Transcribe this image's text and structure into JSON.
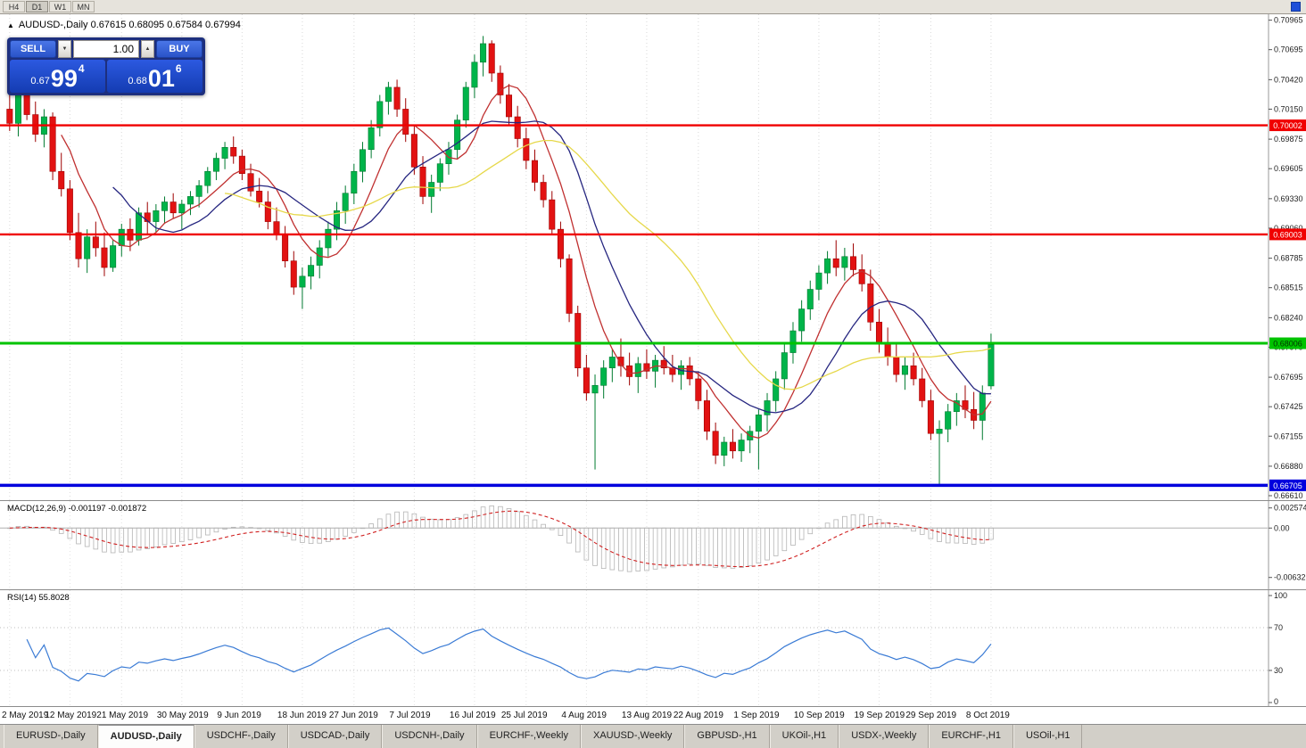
{
  "toolbar": {
    "timeframes": [
      "H4",
      "D1",
      "W1",
      "MN"
    ],
    "active_timeframe": "D1"
  },
  "window": {
    "accent_icon_color": "#1f4fd8"
  },
  "chart": {
    "collapse_icon": "▲",
    "title": "AUDUSD-,Daily  0.67615 0.68095 0.67584 0.67994"
  },
  "trade_panel": {
    "sell_label": "SELL",
    "buy_label": "BUY",
    "volume": "1.00",
    "decrease_icon": "▼",
    "increase_icon": "▲",
    "sell_price": {
      "prefix": "0.67",
      "big": "99",
      "sup": "4"
    },
    "buy_price": {
      "prefix": "0.68",
      "big": "01",
      "sup": "6"
    }
  },
  "indicators": {
    "macd": {
      "label": "MACD(12,26,9) -0.001197 -0.001872",
      "axis": [
        "0.002574",
        "0.00",
        "-0.006326"
      ],
      "fast": 12,
      "slow": 26,
      "signal": 9,
      "histogram_color": "#b4b4b4",
      "signal_color": "#d02020",
      "range": [
        -0.0075,
        0.003
      ]
    },
    "rsi": {
      "label": "RSI(14) 55.8028",
      "axis": [
        "100",
        "70",
        "30",
        "0"
      ],
      "period": 14,
      "levels": [
        70,
        30
      ],
      "line_color": "#3a7bd5"
    }
  },
  "chart_data": {
    "type": "candlestick",
    "symbol": "AUDUSD-",
    "timeframe": "Daily",
    "current_ohlc": {
      "open": 0.67615,
      "high": 0.68095,
      "low": 0.67584,
      "close": 0.67994
    },
    "y_range": [
      0.6661,
      0.7097
    ],
    "up_color": "#00b44a",
    "up_border": "#007a30",
    "down_color": "#e21212",
    "down_border": "#9e0000",
    "y_axis_labels": [
      "0.70965",
      "0.70695",
      "0.70420",
      "0.70150",
      "0.69875",
      "0.69605",
      "0.69330",
      "0.69060",
      "0.68785",
      "0.68515",
      "0.68240",
      "0.67970",
      "0.67695",
      "0.67425",
      "0.67155",
      "0.66880",
      "0.66610"
    ],
    "x_labels": [
      "2 May 2019",
      "12 May 2019",
      "21 May 2019",
      "30 May 2019",
      "9 Jun 2019",
      "18 Jun 2019",
      "27 Jun 2019",
      "7 Jul 2019",
      "16 Jul 2019",
      "25 Jul 2019",
      "4 Aug 2019",
      "13 Aug 2019",
      "22 Aug 2019",
      "1 Sep 2019",
      "10 Sep 2019",
      "19 Sep 2019",
      "29 Sep 2019",
      "8 Oct 2019"
    ],
    "levels": [
      {
        "price": 0.70002,
        "label": "0.70002",
        "color": "#f00000",
        "width": 2.4,
        "text_color": "#ffffff"
      },
      {
        "price": 0.69003,
        "label": "0.69003",
        "color": "#f00000",
        "width": 2.4,
        "text_color": "#ffffff"
      },
      {
        "price": 0.68006,
        "label": "0.68006",
        "color": "#00c300",
        "width": 3.0,
        "text_color": "#003300"
      },
      {
        "price": 0.66705,
        "label": "0.66705",
        "color": "#0000dd",
        "width": 3.6,
        "text_color": "#ffffff"
      }
    ],
    "moving_averages": [
      {
        "period": 7,
        "color": "#c03030"
      },
      {
        "period": 13,
        "color": "#262680"
      },
      {
        "period": 26,
        "color": "#e6d84a"
      }
    ],
    "ohlc": [
      [
        0.7015,
        0.7032,
        0.6995,
        0.7002
      ],
      [
        0.7002,
        0.7045,
        0.699,
        0.7028
      ],
      [
        0.7028,
        0.704,
        0.7005,
        0.701
      ],
      [
        0.701,
        0.7022,
        0.6985,
        0.6992
      ],
      [
        0.6992,
        0.7015,
        0.698,
        0.7008
      ],
      [
        0.7008,
        0.7012,
        0.695,
        0.6958
      ],
      [
        0.6958,
        0.6975,
        0.6935,
        0.6942
      ],
      [
        0.6942,
        0.695,
        0.6895,
        0.6902
      ],
      [
        0.6902,
        0.692,
        0.687,
        0.6878
      ],
      [
        0.6878,
        0.6905,
        0.6865,
        0.6898
      ],
      [
        0.6898,
        0.6912,
        0.688,
        0.6888
      ],
      [
        0.6888,
        0.6902,
        0.6862,
        0.687
      ],
      [
        0.687,
        0.6895,
        0.6866,
        0.689
      ],
      [
        0.689,
        0.691,
        0.688,
        0.6905
      ],
      [
        0.6905,
        0.6915,
        0.6885,
        0.6895
      ],
      [
        0.6895,
        0.6925,
        0.689,
        0.692
      ],
      [
        0.692,
        0.693,
        0.69,
        0.6912
      ],
      [
        0.6912,
        0.6928,
        0.6902,
        0.6922
      ],
      [
        0.6922,
        0.6935,
        0.691,
        0.693
      ],
      [
        0.693,
        0.6938,
        0.6915,
        0.692
      ],
      [
        0.692,
        0.6932,
        0.6905,
        0.6928
      ],
      [
        0.6928,
        0.694,
        0.6918,
        0.6935
      ],
      [
        0.6935,
        0.695,
        0.6925,
        0.6945
      ],
      [
        0.6945,
        0.6962,
        0.6938,
        0.6958
      ],
      [
        0.6958,
        0.6975,
        0.695,
        0.697
      ],
      [
        0.697,
        0.6985,
        0.696,
        0.698
      ],
      [
        0.698,
        0.699,
        0.6965,
        0.6972
      ],
      [
        0.6972,
        0.6978,
        0.695,
        0.6956
      ],
      [
        0.6956,
        0.6965,
        0.6935,
        0.694
      ],
      [
        0.694,
        0.6952,
        0.6925,
        0.693
      ],
      [
        0.693,
        0.694,
        0.6905,
        0.6912
      ],
      [
        0.6912,
        0.6925,
        0.6895,
        0.69
      ],
      [
        0.69,
        0.6908,
        0.687,
        0.6876
      ],
      [
        0.6876,
        0.6885,
        0.6845,
        0.6852
      ],
      [
        0.6852,
        0.687,
        0.6832,
        0.6862
      ],
      [
        0.6862,
        0.688,
        0.685,
        0.6872
      ],
      [
        0.6872,
        0.6895,
        0.686,
        0.6888
      ],
      [
        0.6888,
        0.6912,
        0.688,
        0.6905
      ],
      [
        0.6905,
        0.693,
        0.6895,
        0.6922
      ],
      [
        0.6922,
        0.6945,
        0.691,
        0.6938
      ],
      [
        0.6938,
        0.6965,
        0.6928,
        0.6958
      ],
      [
        0.6958,
        0.6985,
        0.6948,
        0.6978
      ],
      [
        0.6978,
        0.7005,
        0.697,
        0.6998
      ],
      [
        0.6998,
        0.7028,
        0.699,
        0.7022
      ],
      [
        0.7022,
        0.704,
        0.701,
        0.7035
      ],
      [
        0.7035,
        0.7042,
        0.7008,
        0.7015
      ],
      [
        0.7015,
        0.7025,
        0.6985,
        0.6992
      ],
      [
        0.6992,
        0.7,
        0.6955,
        0.6962
      ],
      [
        0.6962,
        0.6972,
        0.6928,
        0.6935
      ],
      [
        0.6935,
        0.6955,
        0.692,
        0.6948
      ],
      [
        0.6948,
        0.697,
        0.694,
        0.6965
      ],
      [
        0.6965,
        0.6985,
        0.6955,
        0.6978
      ],
      [
        0.6978,
        0.701,
        0.697,
        0.7005
      ],
      [
        0.7005,
        0.704,
        0.6998,
        0.7035
      ],
      [
        0.7035,
        0.7065,
        0.7025,
        0.7058
      ],
      [
        0.7058,
        0.7082,
        0.7045,
        0.7075
      ],
      [
        0.7075,
        0.7078,
        0.704,
        0.7048
      ],
      [
        0.7048,
        0.7055,
        0.702,
        0.7028
      ],
      [
        0.7028,
        0.7038,
        0.7,
        0.7008
      ],
      [
        0.7008,
        0.7018,
        0.698,
        0.6988
      ],
      [
        0.6988,
        0.6998,
        0.696,
        0.6968
      ],
      [
        0.6968,
        0.6978,
        0.694,
        0.6948
      ],
      [
        0.6948,
        0.6955,
        0.6925,
        0.6932
      ],
      [
        0.6932,
        0.694,
        0.69,
        0.6905
      ],
      [
        0.6905,
        0.6912,
        0.687,
        0.6878
      ],
      [
        0.6878,
        0.6882,
        0.682,
        0.6828
      ],
      [
        0.6828,
        0.6835,
        0.677,
        0.6778
      ],
      [
        0.6778,
        0.679,
        0.6748,
        0.6755
      ],
      [
        0.6755,
        0.6772,
        0.6685,
        0.6762
      ],
      [
        0.6762,
        0.6785,
        0.675,
        0.6778
      ],
      [
        0.6778,
        0.6795,
        0.6765,
        0.6788
      ],
      [
        0.6788,
        0.6805,
        0.677,
        0.678
      ],
      [
        0.678,
        0.6792,
        0.6762,
        0.677
      ],
      [
        0.677,
        0.6788,
        0.6755,
        0.6782
      ],
      [
        0.6782,
        0.6795,
        0.6768,
        0.6775
      ],
      [
        0.6775,
        0.679,
        0.676,
        0.6785
      ],
      [
        0.6785,
        0.6798,
        0.6772,
        0.6778
      ],
      [
        0.6778,
        0.679,
        0.6765,
        0.6772
      ],
      [
        0.6772,
        0.6785,
        0.6758,
        0.678
      ],
      [
        0.678,
        0.6788,
        0.6762,
        0.6768
      ],
      [
        0.6768,
        0.6775,
        0.674,
        0.6748
      ],
      [
        0.6748,
        0.6758,
        0.6712,
        0.672
      ],
      [
        0.672,
        0.6728,
        0.669,
        0.6698
      ],
      [
        0.6698,
        0.6715,
        0.6688,
        0.671
      ],
      [
        0.671,
        0.6722,
        0.6695,
        0.6702
      ],
      [
        0.6702,
        0.6718,
        0.6692,
        0.6712
      ],
      [
        0.6712,
        0.6725,
        0.67,
        0.672
      ],
      [
        0.672,
        0.674,
        0.6685,
        0.6735
      ],
      [
        0.6735,
        0.6755,
        0.672,
        0.6748
      ],
      [
        0.6748,
        0.6775,
        0.6738,
        0.6768
      ],
      [
        0.6768,
        0.68,
        0.6758,
        0.6792
      ],
      [
        0.6792,
        0.682,
        0.6782,
        0.6812
      ],
      [
        0.6812,
        0.684,
        0.6802,
        0.6832
      ],
      [
        0.6832,
        0.6858,
        0.6822,
        0.685
      ],
      [
        0.685,
        0.6872,
        0.684,
        0.6865
      ],
      [
        0.6865,
        0.6885,
        0.6855,
        0.6878
      ],
      [
        0.6878,
        0.6895,
        0.6862,
        0.687
      ],
      [
        0.687,
        0.6888,
        0.6858,
        0.688
      ],
      [
        0.688,
        0.6892,
        0.6862,
        0.6868
      ],
      [
        0.6868,
        0.6882,
        0.6848,
        0.6855
      ],
      [
        0.6855,
        0.6868,
        0.6812,
        0.682
      ],
      [
        0.682,
        0.6832,
        0.6792,
        0.68
      ],
      [
        0.68,
        0.6815,
        0.678,
        0.6788
      ],
      [
        0.6788,
        0.68,
        0.6765,
        0.6772
      ],
      [
        0.6772,
        0.6788,
        0.6758,
        0.678
      ],
      [
        0.678,
        0.6792,
        0.6762,
        0.6768
      ],
      [
        0.6768,
        0.6778,
        0.6742,
        0.6748
      ],
      [
        0.6748,
        0.6758,
        0.6712,
        0.6718
      ],
      [
        0.6718,
        0.673,
        0.667,
        0.6722
      ],
      [
        0.6722,
        0.6745,
        0.671,
        0.6738
      ],
      [
        0.6738,
        0.6755,
        0.6725,
        0.6748
      ],
      [
        0.6748,
        0.6762,
        0.6732,
        0.674
      ],
      [
        0.674,
        0.6756,
        0.6722,
        0.673
      ],
      [
        0.673,
        0.6762,
        0.6712,
        0.6755
      ],
      [
        0.67615,
        0.68095,
        0.67584,
        0.67994
      ]
    ]
  },
  "tab_bar": {
    "tabs": [
      {
        "label": "EURUSD-,Daily"
      },
      {
        "label": "AUDUSD-,Daily",
        "active": true
      },
      {
        "label": "USDCHF-,Daily"
      },
      {
        "label": "USDCAD-,Daily"
      },
      {
        "label": "USDCNH-,Daily"
      },
      {
        "label": "EURCHF-,Weekly"
      },
      {
        "label": "XAUUSD-,Weekly"
      },
      {
        "label": "GBPUSD-,H1"
      },
      {
        "label": "UKOil-,H1"
      },
      {
        "label": "USDX-,Weekly"
      },
      {
        "label": "EURCHF-,H1"
      },
      {
        "label": "USOil-,H1"
      }
    ]
  }
}
